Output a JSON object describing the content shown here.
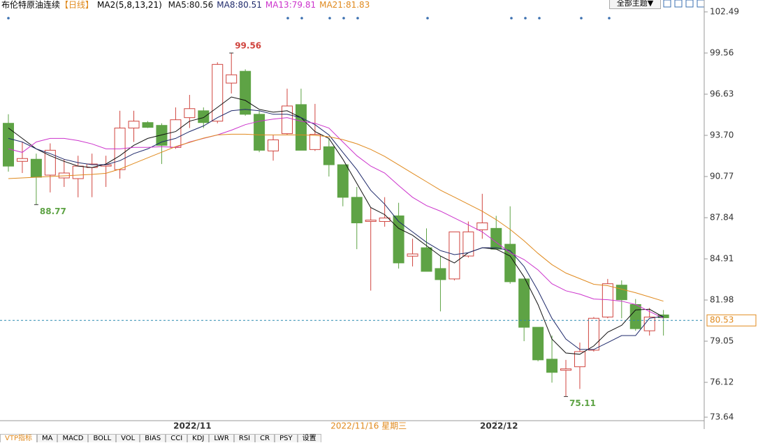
{
  "chart_data": {
    "type": "candlestick",
    "title": "布伦特原油连续",
    "period": "【日线】",
    "indicator": "MA2(5,8,13,21)",
    "theme_button": "全部主题▼",
    "crosshair_label": "2022/11/16 星期三",
    "indicator_tabs": [
      "VTP指标",
      "MA",
      "MACD",
      "BOLL",
      "VOL",
      "BIAS",
      "CCI",
      "KDJ",
      "LWR",
      "RSI",
      "CR",
      "PSY",
      "设置"
    ],
    "categories": [
      null,
      null,
      null,
      null,
      null,
      null,
      null,
      null,
      null,
      null,
      null,
      null,
      null,
      "2022/11",
      null,
      null,
      null,
      null,
      null,
      null,
      null,
      null,
      null,
      null,
      null,
      null,
      null,
      null,
      null,
      null,
      null,
      null,
      null,
      null,
      null,
      "2022/12",
      null,
      null,
      null,
      null,
      null,
      null,
      null,
      null,
      null,
      null,
      null,
      null
    ],
    "open": [
      94.56,
      91.85,
      92.0,
      90.87,
      90.67,
      90.62,
      91.41,
      91.51,
      91.26,
      94.22,
      94.61,
      94.41,
      92.84,
      94.96,
      95.45,
      94.71,
      97.42,
      98.26,
      95.2,
      92.59,
      93.82,
      95.89,
      92.69,
      92.89,
      91.61,
      89.29,
      87.57,
      87.57,
      87.97,
      85.1,
      85.7,
      84.22,
      83.48,
      85.11,
      86.98,
      87.08,
      85.95,
      83.48,
      80.04,
      77.77,
      76.98,
      77.23,
      78.41,
      80.77,
      83.04,
      81.66,
      79.79,
      80.92
    ],
    "high": [
      95.2,
      93.23,
      92.4,
      93.13,
      92.0,
      92.25,
      92.4,
      92.25,
      95.45,
      95.45,
      94.71,
      94.56,
      95.69,
      96.58,
      95.69,
      98.9,
      99.56,
      98.4,
      95.45,
      93.72,
      97.02,
      97.02,
      95.94,
      93.48,
      91.61,
      90.03,
      88.55,
      89.3,
      88.9,
      86.34,
      87.08,
      85.11,
      86.83,
      87.57,
      89.54,
      87.97,
      88.65,
      83.48,
      80.04,
      79.45,
      77.72,
      78.95,
      80.77,
      83.48,
      83.38,
      82.05,
      81.41,
      81.27
    ],
    "low": [
      91.12,
      91.02,
      88.77,
      89.64,
      90.03,
      89.29,
      89.3,
      90.03,
      90.62,
      93.23,
      94.22,
      91.66,
      92.74,
      94.22,
      94.22,
      94.56,
      96.68,
      95.1,
      92.5,
      91.9,
      93.72,
      92.64,
      92.59,
      90.77,
      88.65,
      85.6,
      82.65,
      87.2,
      84.22,
      84.37,
      84.02,
      81.17,
      83.38,
      85.0,
      86.34,
      85.6,
      83.14,
      79.05,
      77.62,
      76.1,
      75.11,
      75.65,
      78.31,
      80.68,
      80.68,
      79.79,
      79.45,
      79.45
    ],
    "close": [
      91.51,
      92.05,
      90.72,
      92.64,
      91.02,
      91.51,
      91.66,
      91.61,
      94.22,
      94.71,
      94.27,
      92.99,
      94.81,
      95.6,
      94.61,
      98.75,
      98.01,
      95.2,
      92.64,
      93.38,
      95.79,
      92.64,
      93.77,
      91.61,
      89.29,
      87.47,
      87.67,
      87.82,
      84.62,
      85.26,
      84.02,
      83.43,
      86.83,
      86.83,
      87.47,
      85.6,
      83.28,
      80.04,
      77.72,
      76.83,
      77.08,
      78.31,
      80.68,
      83.14,
      82.0,
      79.94,
      80.77,
      80.72
    ],
    "up_color": "#d0453f",
    "down_color": "#5ea345",
    "series": [
      {
        "name": "MA5:80.56",
        "color": "#111111",
        "values": [
          94.22,
          93.48,
          92.74,
          92.25,
          91.85,
          91.51,
          91.41,
          91.66,
          92.25,
          92.99,
          93.48,
          93.73,
          93.97,
          94.71,
          94.96,
          95.69,
          96.43,
          96.19,
          95.55,
          95.35,
          95.45,
          94.96,
          93.97,
          93.48,
          92.0,
          90.28,
          88.56,
          88.06,
          87.08,
          86.59,
          85.85,
          85.11,
          84.62,
          85.35,
          85.7,
          85.6,
          85.11,
          83.63,
          81.66,
          79.2,
          78.21,
          78.12,
          78.71,
          79.69,
          80.18,
          81.27,
          81.32,
          80.77
        ]
      },
      {
        "name": "MA8:80.51",
        "color": "#1f2a6b",
        "values": [
          93.48,
          93.23,
          92.74,
          92.4,
          92.0,
          91.76,
          91.61,
          91.61,
          91.9,
          92.4,
          92.74,
          93.23,
          93.48,
          93.97,
          94.37,
          94.96,
          95.45,
          95.55,
          95.45,
          95.2,
          95.2,
          94.96,
          94.46,
          93.73,
          92.49,
          91.26,
          89.79,
          88.8,
          87.57,
          86.83,
          86.09,
          85.5,
          85.21,
          85.35,
          85.7,
          85.7,
          85.5,
          84.37,
          82.65,
          80.68,
          79.2,
          78.46,
          78.46,
          78.95,
          79.45,
          79.45,
          80.68,
          80.82
        ]
      },
      {
        "name": "MA13:79.81",
        "color": "#cc33cc",
        "values": [
          92.74,
          92.49,
          93.23,
          93.48,
          93.48,
          93.33,
          93.09,
          92.74,
          92.74,
          92.84,
          92.84,
          92.89,
          92.84,
          93.23,
          93.48,
          93.73,
          94.07,
          94.46,
          94.71,
          94.86,
          94.96,
          94.71,
          94.56,
          94.22,
          93.23,
          92.25,
          91.51,
          91.02,
          90.13,
          89.29,
          88.7,
          88.31,
          87.82,
          87.33,
          86.83,
          86.09,
          85.35,
          84.86,
          84.12,
          83.14,
          82.64,
          82.4,
          82.05,
          82.0,
          81.9,
          81.66,
          81.17,
          80.68
        ]
      },
      {
        "name": "MA21:81.83",
        "color": "#e08a1e",
        "values": [
          90.62,
          90.67,
          90.72,
          90.77,
          90.82,
          90.87,
          90.92,
          91.0,
          91.3,
          91.7,
          92.1,
          92.5,
          92.9,
          93.2,
          93.5,
          93.73,
          93.78,
          93.78,
          93.73,
          93.73,
          93.73,
          93.73,
          93.7,
          93.6,
          93.4,
          93.1,
          92.7,
          92.2,
          91.6,
          91.0,
          90.4,
          89.8,
          89.3,
          88.8,
          88.3,
          87.7,
          87.0,
          86.2,
          85.3,
          84.5,
          83.9,
          83.5,
          83.1,
          83.0,
          82.75,
          82.5,
          82.2,
          81.9
        ]
      }
    ],
    "last_price": 80.53,
    "ylim": [
      73.64,
      102.49
    ],
    "yticks": [
      102.49,
      99.56,
      96.63,
      {
        "value": 93.7,
        "label": "93.70"
      },
      90.77,
      87.84,
      84.91,
      81.98,
      79.05,
      76.12,
      73.64
    ]
  }
}
